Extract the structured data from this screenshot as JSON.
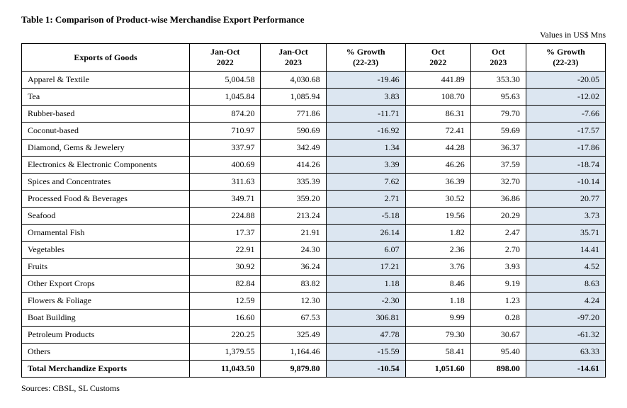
{
  "title": "Table 1: Comparison of Product-wise Merchandise Export Performance",
  "units": "Values in US$ Mns",
  "sources": "Sources: CBSL, SL Customs",
  "columns": [
    "Exports of Goods",
    "Jan-Oct 2022",
    "Jan-Oct 2023",
    "% Growth (22-23)",
    "Oct 2022",
    "Oct 2023",
    "% Growth (22-23)"
  ],
  "rows": [
    {
      "label": "Apparel & Textile",
      "v": [
        "5,004.58",
        "4,030.68",
        "-19.46",
        "441.89",
        "353.30",
        "-20.05"
      ]
    },
    {
      "label": "Tea",
      "v": [
        "1,045.84",
        "1,085.94",
        "3.83",
        "108.70",
        "95.63",
        "-12.02"
      ]
    },
    {
      "label": "Rubber-based",
      "v": [
        "874.20",
        "771.86",
        "-11.71",
        "86.31",
        "79.70",
        "-7.66"
      ]
    },
    {
      "label": "Coconut-based",
      "v": [
        "710.97",
        "590.69",
        "-16.92",
        "72.41",
        "59.69",
        "-17.57"
      ]
    },
    {
      "label": "Diamond, Gems & Jewelery",
      "v": [
        "337.97",
        "342.49",
        "1.34",
        "44.28",
        "36.37",
        "-17.86"
      ]
    },
    {
      "label": "Electronics & Electronic   Components",
      "v": [
        "400.69",
        "414.26",
        "3.39",
        "46.26",
        "37.59",
        "-18.74"
      ]
    },
    {
      "label": "Spices and Concentrates",
      "v": [
        "311.63",
        "335.39",
        "7.62",
        "36.39",
        "32.70",
        "-10.14"
      ]
    },
    {
      "label": "Processed Food & Beverages",
      "v": [
        "349.71",
        "359.20",
        "2.71",
        "30.52",
        "36.86",
        "20.77"
      ]
    },
    {
      "label": "Seafood",
      "v": [
        "224.88",
        "213.24",
        "-5.18",
        "19.56",
        "20.29",
        "3.73"
      ]
    },
    {
      "label": "Ornamental Fish",
      "v": [
        "17.37",
        "21.91",
        "26.14",
        "1.82",
        "2.47",
        "35.71"
      ]
    },
    {
      "label": "Vegetables",
      "v": [
        "22.91",
        "24.30",
        "6.07",
        "2.36",
        "2.70",
        "14.41"
      ]
    },
    {
      "label": "Fruits",
      "v": [
        "30.92",
        "36.24",
        "17.21",
        "3.76",
        "3.93",
        "4.52"
      ]
    },
    {
      "label": "Other Export Crops",
      "v": [
        "82.84",
        "83.82",
        "1.18",
        "8.46",
        "9.19",
        "8.63"
      ]
    },
    {
      "label": "Flowers & Foliage",
      "v": [
        "12.59",
        "12.30",
        "-2.30",
        "1.18",
        "1.23",
        "4.24"
      ]
    },
    {
      "label": "Boat Building",
      "v": [
        "16.60",
        "67.53",
        "306.81",
        "9.99",
        "0.28",
        "-97.20"
      ]
    },
    {
      "label": "Petroleum Products",
      "v": [
        "220.25",
        "325.49",
        "47.78",
        "79.30",
        "30.67",
        "-61.32"
      ]
    },
    {
      "label": "Others",
      "v": [
        "1,379.55",
        "1,164.46",
        "-15.59",
        "58.41",
        "95.40",
        "63.33"
      ]
    }
  ],
  "total": {
    "label": "Total Merchandize Exports",
    "v": [
      "11,043.50",
      "9,879.80",
      "-10.54",
      "1,051.60",
      "898.00",
      "-14.61"
    ]
  },
  "styling": {
    "shaded_columns": [
      2,
      5
    ],
    "shaded_bg": "#dce6f1",
    "border_color": "#000000",
    "font_family": "Georgia, Times New Roman, serif",
    "title_fontsize": 13,
    "cell_fontsize": 12
  }
}
